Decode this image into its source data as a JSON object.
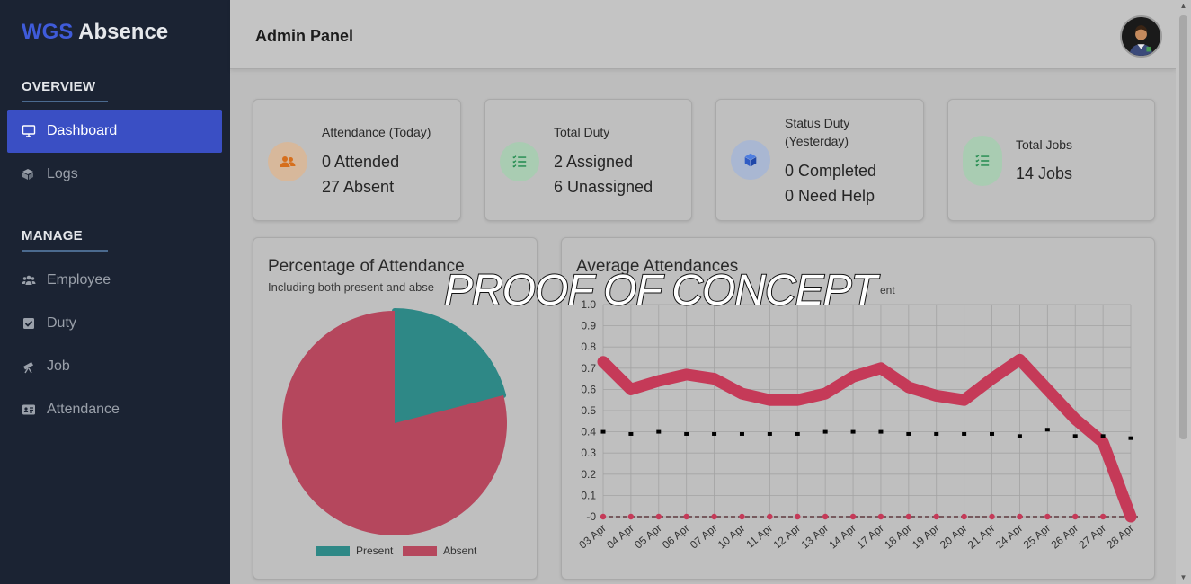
{
  "brand": {
    "part1": "WGS",
    "part2": "Absence"
  },
  "sidebar": {
    "overview_title": "OVERVIEW",
    "manage_title": "MANAGE",
    "overview_items": [
      {
        "label": "Dashboard",
        "icon": "monitor-icon",
        "active": true
      },
      {
        "label": "Logs",
        "icon": "boxes-icon",
        "active": false
      }
    ],
    "manage_items": [
      {
        "label": "Employee",
        "icon": "users-icon"
      },
      {
        "label": "Duty",
        "icon": "checkbox-icon"
      },
      {
        "label": "Job",
        "icon": "telescope-icon"
      },
      {
        "label": "Attendance",
        "icon": "id-card-icon"
      }
    ]
  },
  "header": {
    "title": "Admin Panel"
  },
  "stats": [
    {
      "label": "Attendance (Today)",
      "values": [
        "0 Attended",
        "27 Absent"
      ],
      "icon": "users-icon",
      "color": "#e0a067"
    },
    {
      "label": "Total Duty",
      "values": [
        "2 Assigned",
        "6 Unassigned"
      ],
      "icon": "list-check-icon",
      "color": "#5fc08a"
    },
    {
      "label": "Status Duty (Yesterday)",
      "label_lines": [
        "Status Duty",
        "(Yesterday)"
      ],
      "values": [
        "0 Completed",
        "0 Need Help"
      ],
      "icon": "cube-icon",
      "color": "#3d6fd6"
    },
    {
      "label": "Total Jobs",
      "values": [
        "14 Jobs"
      ],
      "icon": "list-check-icon",
      "color": "#5fc08a"
    }
  ],
  "pie_panel": {
    "title": "Percentage of Attendance",
    "subtitle": "Including both present and abse"
  },
  "line_panel": {
    "title": "Average Attendances",
    "legend_partial": "ent"
  },
  "watermark": "PROOF OF CONCEPT",
  "colors": {
    "present": "#2e8886",
    "absent": "#b5475d",
    "sidebar_bg": "#1b2333",
    "accent": "#3a4fc4"
  },
  "chart_data": [
    {
      "type": "pie",
      "title": "Percentage of Attendance",
      "subtitle": "Including both present and abse",
      "categories": [
        "Present",
        "Absent"
      ],
      "values": [
        0.21,
        0.79
      ],
      "legend": "bottom"
    },
    {
      "type": "line",
      "title": "Average Attendances",
      "x": [
        "03 Apr",
        "04 Apr",
        "05 Apr",
        "06 Apr",
        "07 Apr",
        "10 Apr",
        "11 Apr",
        "12 Apr",
        "13 Apr",
        "14 Apr",
        "17 Apr",
        "18 Apr",
        "19 Apr",
        "20 Apr",
        "21 Apr",
        "24 Apr",
        "25 Apr",
        "26 Apr",
        "27 Apr",
        "28 Apr"
      ],
      "yticks": [
        "1.0",
        "0.9",
        "0.8",
        "0.7",
        "0.6",
        "0.5",
        "0.4",
        "0.3",
        "0.2",
        "0.1",
        "-0"
      ],
      "ylim": [
        0,
        1.0
      ],
      "grid": true,
      "series": [
        {
          "values": [
            0.73,
            0.6,
            0.64,
            0.67,
            0.65,
            0.58,
            0.55,
            0.55,
            0.58,
            0.66,
            0.7,
            0.61,
            0.57,
            0.55,
            0.65,
            0.74,
            0.6,
            0.46,
            0.35,
            0.0
          ]
        },
        {
          "values": [
            0.4,
            0.39,
            0.4,
            0.39,
            0.39,
            0.39,
            0.39,
            0.39,
            0.4,
            0.4,
            0.4,
            0.39,
            0.39,
            0.39,
            0.39,
            0.38,
            0.41,
            0.38,
            0.38,
            0.37
          ]
        },
        {
          "values": [
            0,
            0,
            0,
            0,
            0,
            0,
            0,
            0,
            0,
            0,
            0,
            0,
            0,
            0,
            0,
            0,
            0,
            0,
            0,
            0
          ]
        }
      ]
    }
  ]
}
